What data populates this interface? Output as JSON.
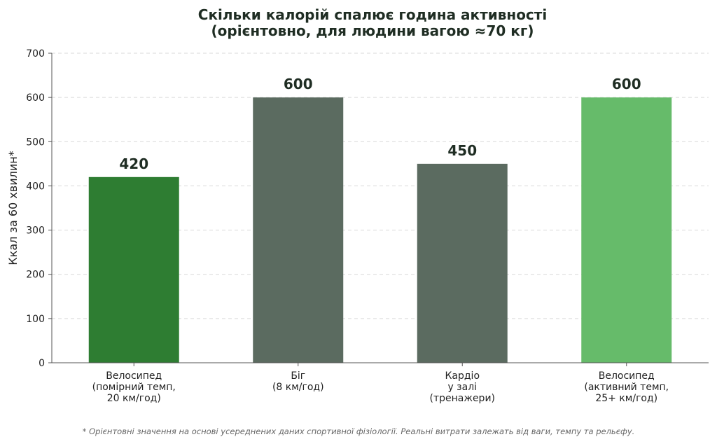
{
  "chart_data": {
    "type": "bar",
    "title": [
      "Скільки калорій спалює година активності",
      "(орієнтовно, для людини вагою ≈70 кг)"
    ],
    "ylabel": "Ккал за 60 хвилин*",
    "xlabel": "",
    "ylim": [
      0,
      700
    ],
    "yticks": [
      0,
      100,
      200,
      300,
      400,
      500,
      600,
      700
    ],
    "grid": true,
    "categories": [
      [
        "Велосипед",
        "(помірний темп,",
        "20 км/год)"
      ],
      [
        "Біг",
        "(8 км/год)"
      ],
      [
        "Кардіо",
        "у залі",
        "(тренажери)"
      ],
      [
        "Велосипед",
        "(активний темп,",
        "25+ км/год)"
      ]
    ],
    "values": [
      420,
      600,
      450,
      600
    ],
    "data_labels": [
      "420",
      "600",
      "450",
      "600"
    ],
    "colors": [
      "#2e7d32",
      "#5b6b60",
      "#5b6b60",
      "#66bb6a"
    ],
    "footnote": "* Орієнтовні значення на основі усереднених даних спортивної фізіології. Реальні витрати залежать від ваги, темпу та рельєфу."
  }
}
